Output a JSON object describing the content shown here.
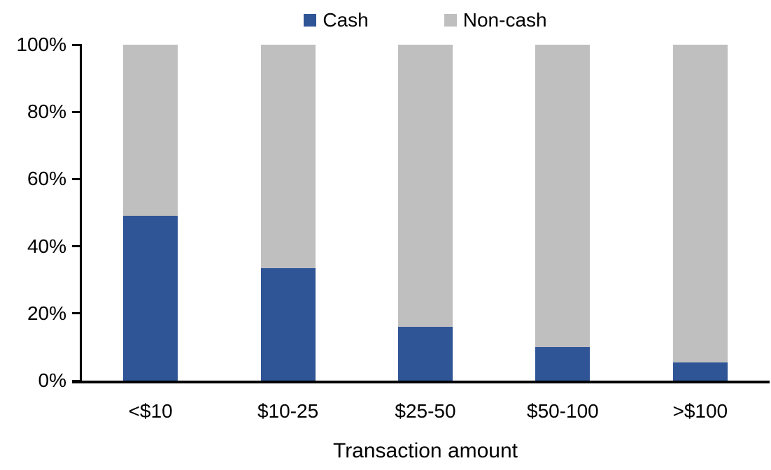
{
  "chart_data": {
    "type": "bar",
    "subtype": "stacked-100-percent",
    "title": "",
    "xlabel": "Transaction amount",
    "ylabel": "",
    "categories": [
      "<$10",
      "$10-25",
      "$25-50",
      "$50-100",
      ">$100"
    ],
    "series": [
      {
        "name": "Cash",
        "color": "#2F5597",
        "values": [
          49,
          33.5,
          16,
          10,
          5.5
        ]
      },
      {
        "name": "Non-cash",
        "color": "#BFBFBF",
        "values": [
          51,
          66.5,
          84,
          90,
          94.5
        ]
      }
    ],
    "ylim": [
      0,
      100
    ],
    "yticks": [
      0,
      20,
      40,
      60,
      80,
      100
    ],
    "ytick_labels": [
      "0%",
      "20%",
      "40%",
      "60%",
      "80%",
      "100%"
    ],
    "legend_position": "top",
    "grid": false,
    "axis_color": "#000000",
    "text_color": "#000000",
    "background_color": "#FFFFFF"
  }
}
